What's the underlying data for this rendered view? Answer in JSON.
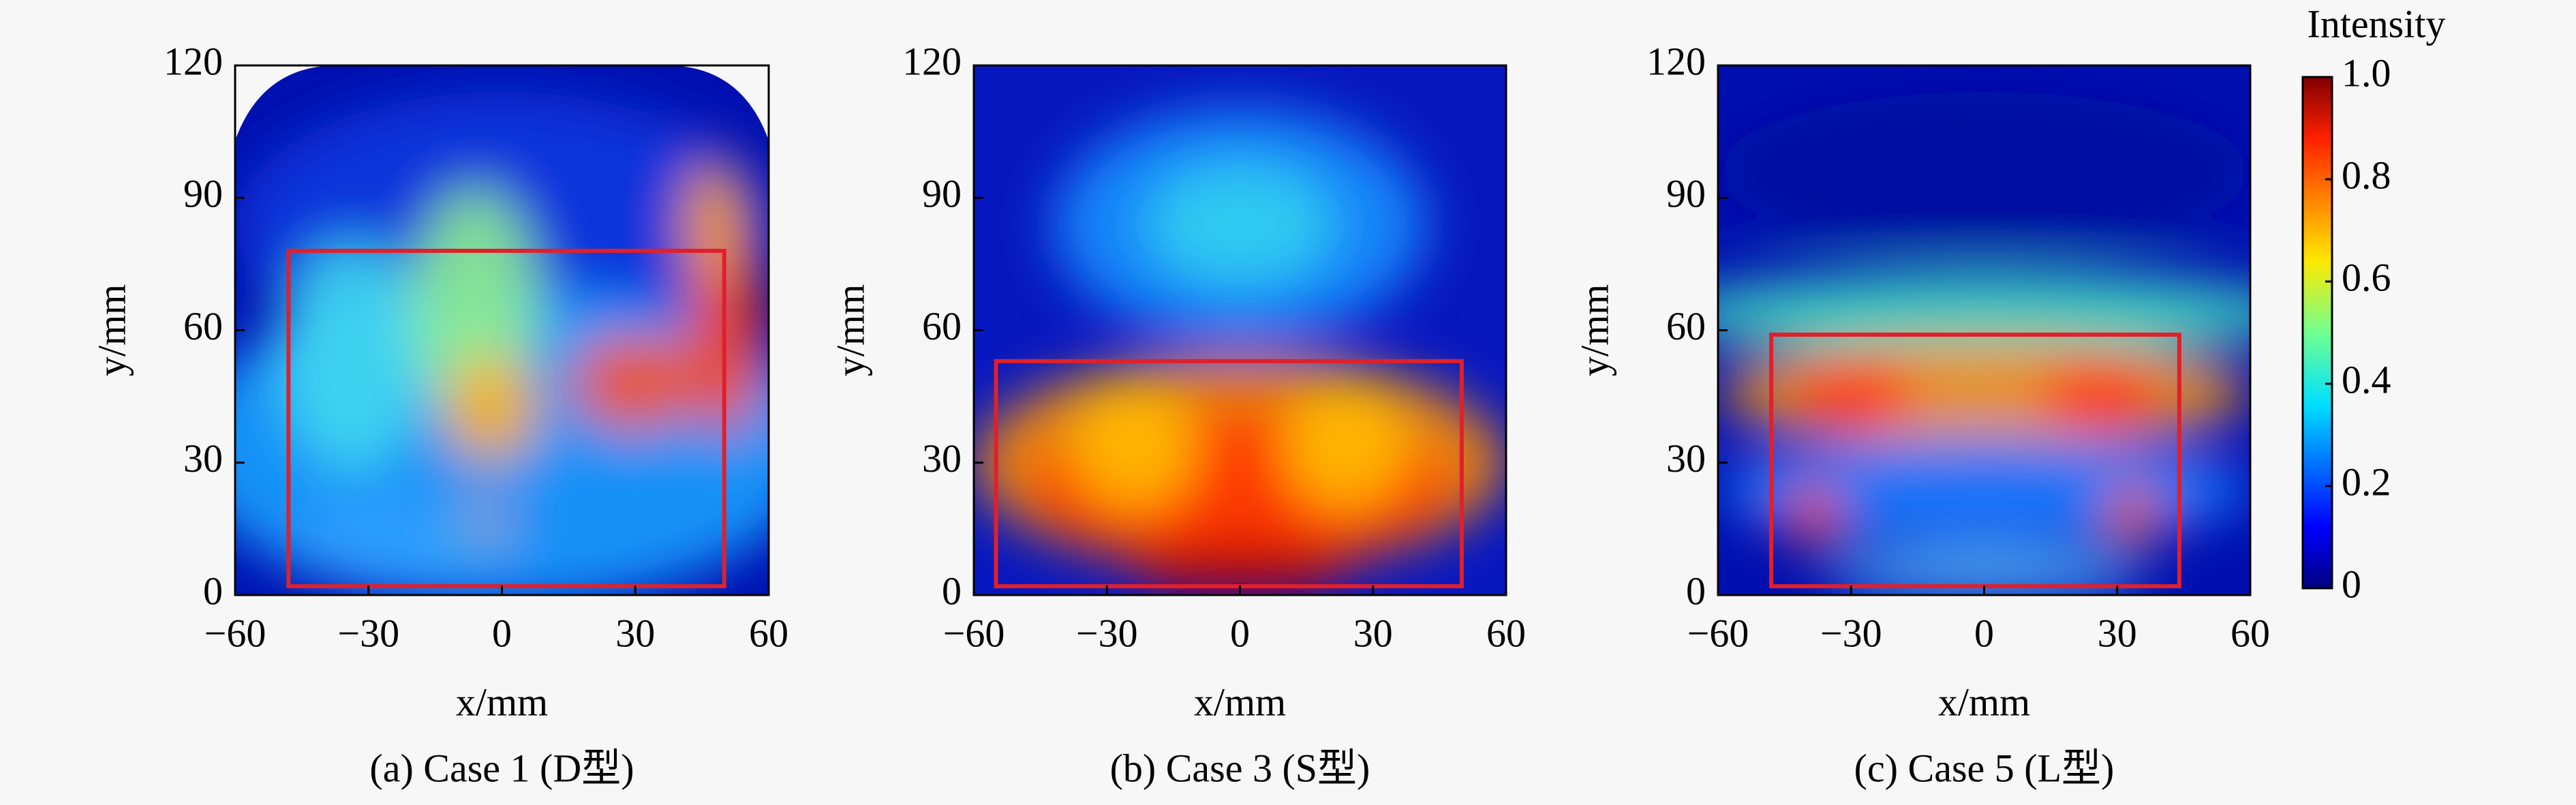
{
  "chart_data": [
    {
      "type": "heatmap",
      "caption": "(a) Case 1 (D型)",
      "xlabel": "x/mm",
      "ylabel": "y/mm",
      "xlim": [
        -60,
        60
      ],
      "xticks": [
        {
          "value": -60,
          "label": "−60"
        },
        {
          "value": -30,
          "label": "−30"
        },
        0,
        30,
        60
      ],
      "ylim": [
        0,
        120
      ],
      "yticks": [
        0,
        30,
        60,
        90,
        120
      ],
      "box": {
        "x": [
          -48,
          50
        ],
        "y": [
          2,
          78
        ],
        "color": "#e0202a"
      }
    },
    {
      "type": "heatmap",
      "caption": "(b) Case 3 (S型)",
      "xlabel": "x/mm",
      "ylabel": "y/mm",
      "xlim": [
        -60,
        60
      ],
      "xticks": [
        {
          "value": -60,
          "label": "−60"
        },
        {
          "value": -30,
          "label": "−30"
        },
        0,
        30,
        60
      ],
      "ylim": [
        0,
        120
      ],
      "yticks": [
        0,
        30,
        60,
        90,
        120
      ],
      "box": {
        "x": [
          -55,
          50
        ],
        "y": [
          2,
          53
        ],
        "color": "#e0202a"
      }
    },
    {
      "type": "heatmap",
      "caption": "(c) Case 5 (L型)",
      "xlabel": "x/mm",
      "ylabel": "y/mm",
      "xlim": [
        -60,
        60
      ],
      "xticks": [
        {
          "value": -60,
          "label": "−60"
        },
        {
          "value": -30,
          "label": "−30"
        },
        0,
        30,
        60
      ],
      "ylim": [
        0,
        120
      ],
      "yticks": [
        0,
        30,
        60,
        90,
        120
      ],
      "box": {
        "x": [
          -48,
          44
        ],
        "y": [
          2,
          59
        ],
        "color": "#e0202a"
      }
    }
  ],
  "colorbar": {
    "title": "Intensity",
    "lim": [
      0,
      1
    ],
    "ticks": [
      0,
      0.2,
      0.4,
      0.6,
      0.8,
      {
        "value": 1,
        "label": "1.0"
      }
    ]
  }
}
